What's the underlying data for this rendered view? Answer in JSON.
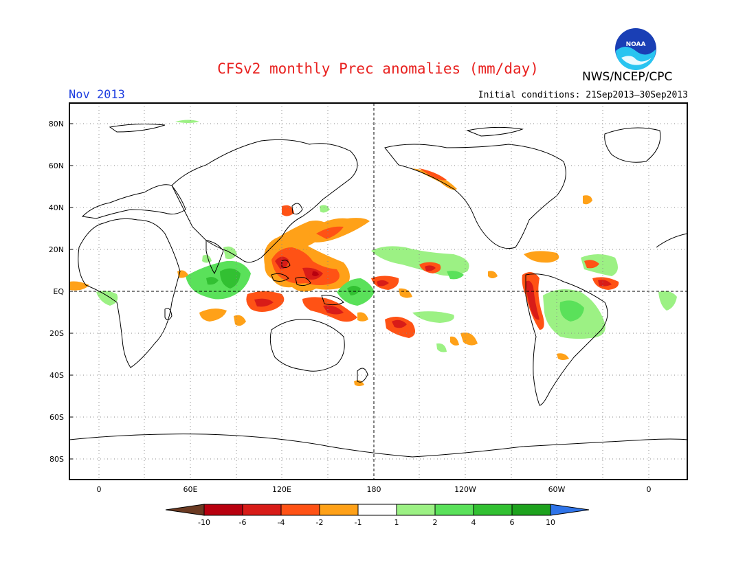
{
  "title": "CFSv2 monthly Prec anomalies (mm/day)",
  "organization": "NWS/NCEP/CPC",
  "logo_text": "NOAA",
  "valid_month": "Nov 2013",
  "initial_conditions": "Initial conditions: 21Sep2013–30Sep2013",
  "map": {
    "lat_labels": [
      "80N",
      "60N",
      "40N",
      "20N",
      "EQ",
      "20S",
      "40S",
      "60S",
      "80S"
    ],
    "lon_labels": [
      "0",
      "60E",
      "120E",
      "180",
      "120W",
      "60W",
      "0"
    ]
  },
  "colorbar": {
    "labels": [
      "-10",
      "-6",
      "-4",
      "-2",
      "-1",
      "1",
      "2",
      "4",
      "6",
      "10"
    ],
    "colors": [
      "#6b3a22",
      "#b8000f",
      "#d81c18",
      "#ff5215",
      "#ffa118",
      "#ffffff",
      "#9cf184",
      "#5ae15a",
      "#32c032",
      "#1ea21e",
      "#2f74e9"
    ]
  }
}
